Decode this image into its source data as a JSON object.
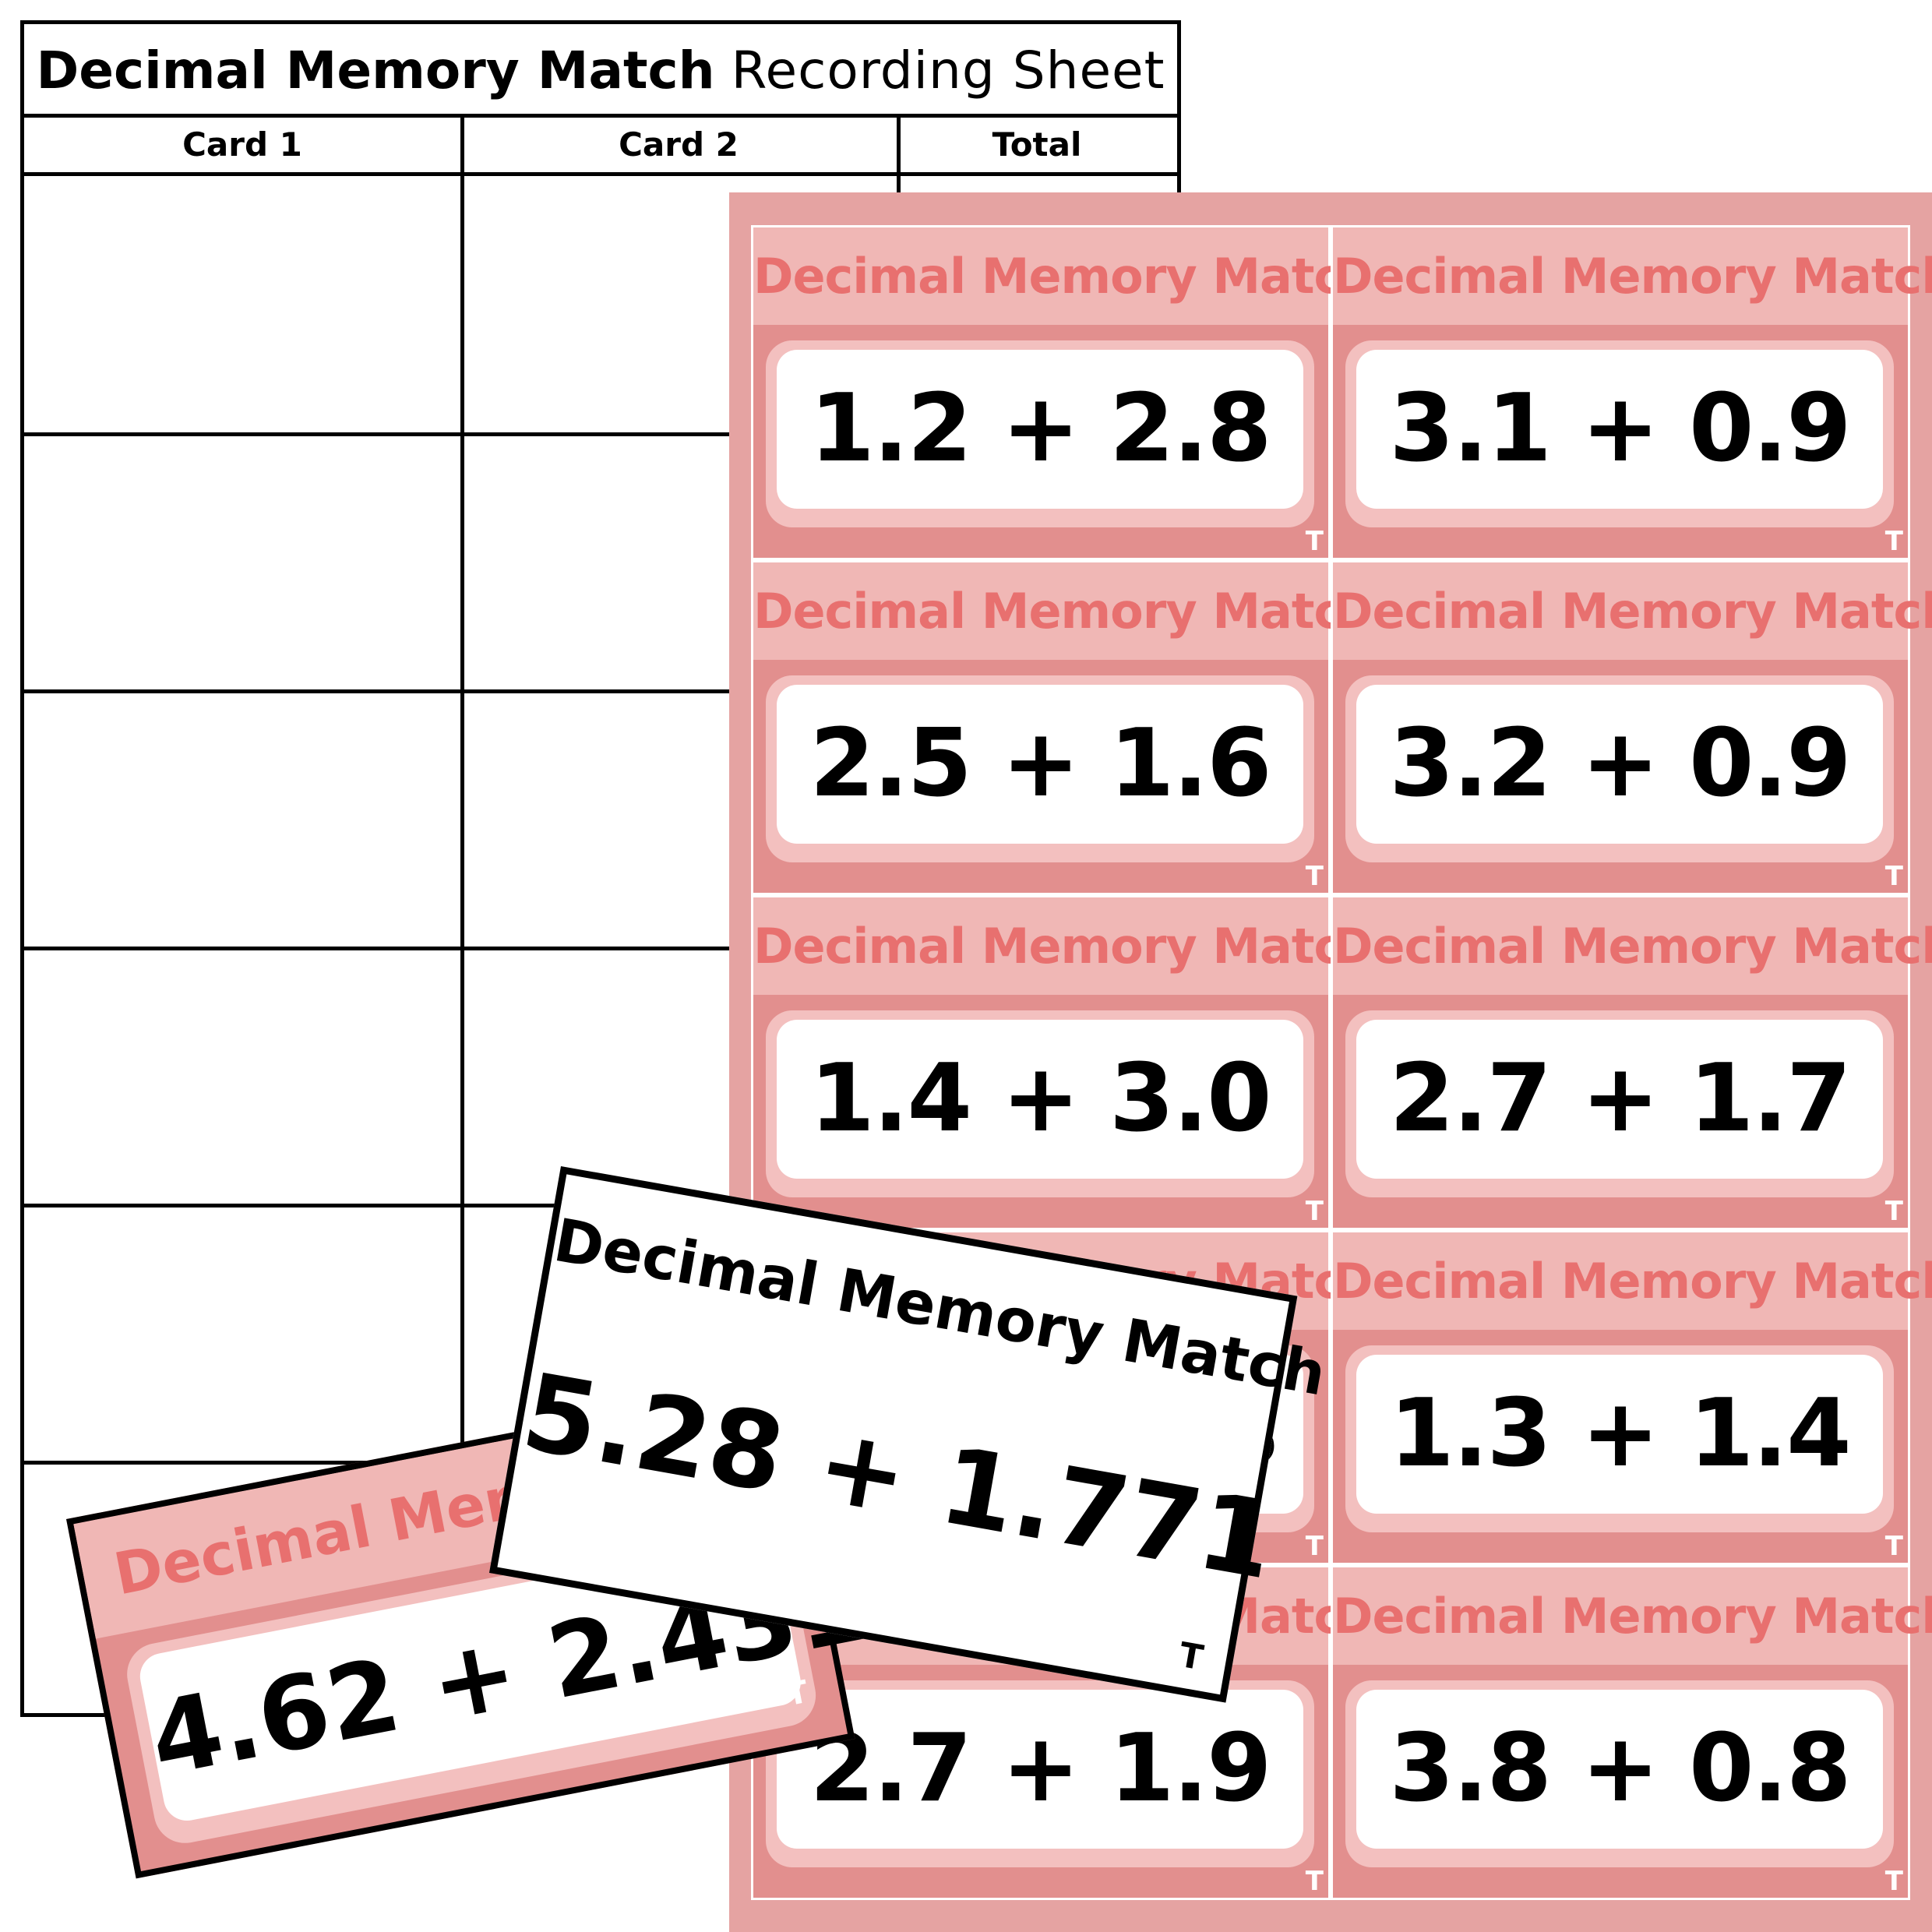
{
  "sheet": {
    "title_bold": "Decimal Memory Match",
    "title_light": "Recording Sheet",
    "columns": [
      "Card 1",
      "Card 2",
      "Total"
    ]
  },
  "card_title": "Decimal Memory Match",
  "card_mark": "T",
  "grid_cards": [
    "1.2 + 2.8",
    "3.1 + 0.9",
    "2.5 + 1.6",
    "3.2 + 0.9",
    "1.4 + 3.0",
    "2.7 + 1.7",
    "3",
    "1.3 + 1.4",
    "2.7 + 1.9",
    "3.8 + 0.8"
  ],
  "loose_pink": {
    "title": "Decimal Memory",
    "expression": "4.62 + 2.431",
    "mark": "T"
  },
  "loose_white": {
    "title": "Decimal Memory Match",
    "expression": "5.28 + 1.771",
    "mark": "T"
  },
  "colors": {
    "pink_bg": "#e5a3a2",
    "card_body": "#e28f8e",
    "card_header": "#f0b7b5",
    "card_title_text": "#e8706f",
    "border": "#000000"
  }
}
